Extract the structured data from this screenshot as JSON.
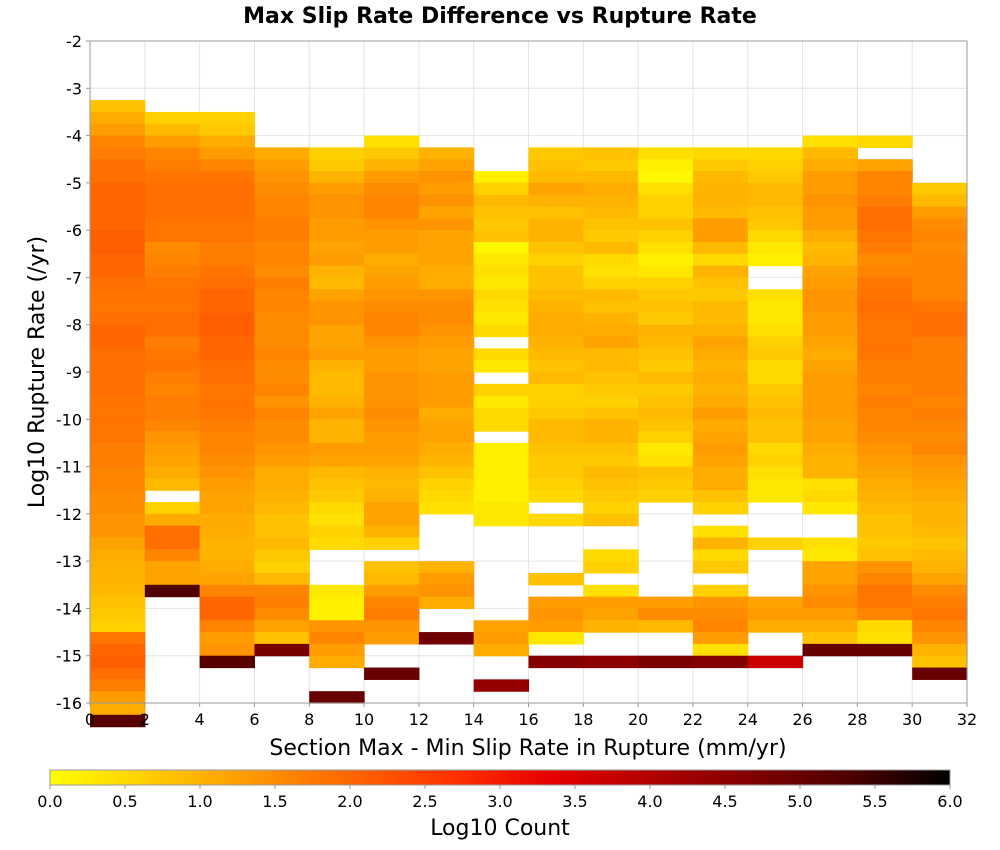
{
  "chart_data": {
    "type": "heatmap",
    "title": "Max Slip Rate Difference vs Rupture Rate",
    "xlabel": "Section Max - Min Slip Rate in Rupture (mm/yr)",
    "ylabel": "Log10 Rupture Rate (/yr)",
    "xlim": [
      0,
      32
    ],
    "ylim": [
      -16,
      -2
    ],
    "x_ticks": [
      "0",
      "2",
      "4",
      "6",
      "8",
      "10",
      "12",
      "14",
      "16",
      "18",
      "20",
      "22",
      "24",
      "26",
      "28",
      "30",
      "32"
    ],
    "y_ticks": [
      "-2",
      "-3",
      "-4",
      "-5",
      "-6",
      "-7",
      "-8",
      "-9",
      "-10",
      "-11",
      "-12",
      "-13",
      "-14",
      "-15",
      "-16"
    ],
    "x_bin_width": 2,
    "y_bin_height": 0.25,
    "colorbar": {
      "label": "Log10 Count",
      "range": [
        0,
        6
      ],
      "ticks": [
        "0.0",
        "0.5",
        "1.0",
        "1.5",
        "2.0",
        "2.5",
        "3.0",
        "3.5",
        "4.0",
        "4.5",
        "5.0",
        "5.5",
        "6.0"
      ],
      "stops": [
        "#ffff00",
        "#ffcc00",
        "#ff9900",
        "#ff6600",
        "#ff3300",
        "#e60000",
        "#b30000",
        "#800000",
        "#4d0000",
        "#000000"
      ]
    },
    "grid": true,
    "legend": "bottom",
    "cells": [
      {
        "x": 1,
        "y_top": -3.25,
        "values": [
          0.8,
          1.1,
          1.3,
          1.6,
          1.7,
          1.9,
          1.9,
          2.0,
          2.0,
          2.0,
          2.0,
          2.1,
          2.1,
          2.0,
          2.0,
          1.9,
          1.8,
          1.8,
          1.9,
          2.0,
          2.0,
          1.9,
          1.9,
          1.9,
          1.9,
          1.8,
          1.8,
          1.8,
          1.8,
          1.7,
          1.7,
          1.6,
          1.6,
          1.5,
          1.5,
          1.4,
          1.4,
          1.2,
          1.1,
          1.0,
          1.0,
          0.9,
          0.8,
          0.7,
          0.6,
          1.8,
          2.0,
          2.1,
          1.9,
          1.7,
          1.3,
          1.1,
          5.2
        ]
      },
      {
        "x": 3,
        "y_top": -3.5,
        "values": [
          0.6,
          0.9,
          1.3,
          1.6,
          1.7,
          1.8,
          1.9,
          1.9,
          1.9,
          1.8,
          1.8,
          1.5,
          1.6,
          1.7,
          1.8,
          1.8,
          1.8,
          1.9,
          1.9,
          1.7,
          1.8,
          1.8,
          1.7,
          1.6,
          1.7,
          1.7,
          1.6,
          1.4,
          1.3,
          1.2,
          1.1,
          0.9,
          null,
          0.6,
          1.1,
          1.9,
          1.9,
          1.6,
          1.2,
          1.2,
          5.3
        ]
      },
      {
        "x": 5,
        "y_top": -3.5,
        "values": [
          0.6,
          0.7,
          1.1,
          1.3,
          1.6,
          1.8,
          1.9,
          1.9,
          1.9,
          1.8,
          1.8,
          1.7,
          1.7,
          1.8,
          1.9,
          2.0,
          2.0,
          2.1,
          2.1,
          2.0,
          2.0,
          1.9,
          1.9,
          1.8,
          1.8,
          1.8,
          1.7,
          1.6,
          1.6,
          1.5,
          1.4,
          1.3,
          1.2,
          1.2,
          1.1,
          1.1,
          1.0,
          1.0,
          1.1,
          1.2,
          1.6,
          2.0,
          2.0,
          1.6,
          1.3,
          1.4,
          5.2
        ]
      },
      {
        "x": 7,
        "y_top": -4.25,
        "values": [
          1.1,
          1.3,
          1.4,
          1.5,
          1.6,
          1.6,
          1.7,
          1.7,
          1.6,
          1.6,
          1.5,
          1.7,
          1.6,
          1.6,
          1.5,
          1.5,
          1.5,
          1.6,
          1.5,
          1.5,
          1.6,
          1.4,
          1.6,
          1.5,
          1.5,
          1.4,
          1.3,
          1.1,
          1.1,
          1.0,
          0.9,
          0.8,
          0.8,
          0.9,
          0.7,
          0.6,
          0.9,
          1.6,
          1.7,
          1.5,
          1.2,
          0.8,
          4.8
        ]
      },
      {
        "x": 9,
        "y_top": -4.25,
        "values": [
          0.6,
          0.7,
          1.0,
          1.3,
          1.4,
          1.4,
          1.3,
          1.3,
          1.2,
          1.3,
          1.0,
          0.9,
          1.2,
          1.4,
          1.4,
          1.2,
          1.2,
          1.3,
          1.0,
          0.9,
          0.9,
          1.0,
          1.2,
          1.0,
          1.0,
          1.3,
          1.2,
          0.9,
          0.8,
          0.7,
          0.5,
          0.4,
          0.6,
          0.5,
          null,
          null,
          null,
          0.3,
          0.2,
          0.2,
          1.4,
          1.6,
          1.3,
          1.1,
          null,
          null,
          5.0
        ]
      },
      {
        "x": 11,
        "y_top": -4.0,
        "values": [
          0.4,
          0.7,
          1.0,
          1.3,
          1.5,
          1.6,
          1.6,
          1.4,
          1.3,
          1.3,
          1.1,
          1.2,
          1.3,
          1.4,
          1.5,
          1.6,
          1.6,
          1.4,
          1.3,
          1.3,
          1.4,
          1.4,
          1.4,
          1.5,
          1.4,
          1.3,
          1.3,
          1.2,
          1.0,
          0.9,
          1.0,
          1.2,
          1.2,
          1.0,
          0.6,
          null,
          0.8,
          0.9,
          1.3,
          1.6,
          1.7,
          1.4,
          1.3,
          null,
          null,
          5.0
        ]
      },
      {
        "x": 13,
        "y_top": -4.25,
        "values": [
          1.0,
          1.2,
          1.4,
          1.3,
          1.4,
          1.2,
          1.4,
          1.2,
          1.2,
          1.2,
          1.1,
          1.1,
          1.4,
          1.5,
          1.5,
          1.4,
          1.3,
          1.2,
          1.2,
          1.3,
          1.3,
          1.3,
          1.1,
          1.2,
          1.2,
          1.1,
          1.0,
          0.8,
          0.6,
          0.5,
          0.4,
          null,
          null,
          null,
          null,
          1.0,
          1.3,
          1.4,
          1.1,
          null,
          null,
          4.9
        ]
      },
      {
        "x": 15,
        "y_top": -4.75,
        "values": [
          0.2,
          0.6,
          0.9,
          0.8,
          0.7,
          0.8,
          0.1,
          0.3,
          0.4,
          0.3,
          0.5,
          0.4,
          0.3,
          0.5,
          null,
          0.5,
          0.3,
          null,
          0.6,
          0.3,
          0.5,
          0.5,
          null,
          0.2,
          0.2,
          0.2,
          0.2,
          0.2,
          0.3,
          0.3,
          null,
          null,
          null,
          null,
          null,
          null,
          null,
          null,
          1.2,
          1.3,
          1.1,
          null,
          null,
          4.4
        ]
      },
      {
        "x": 17,
        "y_top": -4.25,
        "values": [
          0.7,
          0.8,
          0.9,
          1.2,
          1.0,
          0.8,
          1.0,
          1.0,
          0.8,
          0.6,
          0.8,
          0.8,
          0.9,
          1.0,
          1.1,
          1.1,
          1.0,
          0.9,
          0.8,
          0.9,
          0.6,
          0.6,
          0.7,
          0.9,
          0.9,
          0.8,
          0.7,
          0.7,
          0.6,
          0.5,
          null,
          0.5,
          null,
          null,
          null,
          null,
          0.8,
          null,
          1.3,
          1.4,
          1.3,
          0.3,
          null,
          4.6
        ]
      },
      {
        "x": 19,
        "y_top": -4.25,
        "values": [
          0.8,
          0.7,
          0.9,
          1.1,
          1.0,
          0.9,
          0.8,
          0.7,
          0.9,
          0.5,
          0.4,
          0.6,
          0.9,
          0.8,
          1.0,
          1.1,
          1.2,
          0.9,
          0.9,
          0.8,
          0.7,
          0.6,
          0.8,
          1.0,
          1.0,
          0.8,
          0.7,
          0.9,
          0.8,
          0.7,
          0.6,
          0.8,
          null,
          null,
          0.5,
          0.6,
          null,
          0.4,
          1.3,
          1.2,
          1.0,
          null,
          null,
          4.5
        ]
      },
      {
        "x": 21,
        "y_top": -4.25,
        "values": [
          0.4,
          0.2,
          0.1,
          0.4,
          0.6,
          0.6,
          0.8,
          0.6,
          0.4,
          0.2,
          0.3,
          0.6,
          0.7,
          0.8,
          0.7,
          1.0,
          0.9,
          0.8,
          0.7,
          0.9,
          0.7,
          0.8,
          0.9,
          0.8,
          0.6,
          0.3,
          0.4,
          0.8,
          0.7,
          0.6,
          null,
          null,
          null,
          null,
          null,
          null,
          null,
          null,
          1.3,
          1.5,
          0.9,
          null,
          null,
          4.7
        ]
      },
      {
        "x": 23,
        "y_top": -4.25,
        "values": [
          0.5,
          0.7,
          0.9,
          1.0,
          1.0,
          0.9,
          1.3,
          1.3,
          0.9,
          0.5,
          1.0,
          0.8,
          0.7,
          0.9,
          0.9,
          1.0,
          1.2,
          1.1,
          1.0,
          1.1,
          1.0,
          1.1,
          1.3,
          1.1,
          1.2,
          1.3,
          1.2,
          1.1,
          1.1,
          0.8,
          0.6,
          null,
          0.4,
          1.0,
          0.5,
          0.7,
          null,
          0.6,
          1.4,
          1.5,
          1.6,
          1.3,
          0.4,
          4.6
        ]
      },
      {
        "x": 25,
        "y_top": -4.25,
        "values": [
          0.5,
          0.6,
          0.7,
          0.9,
          0.9,
          0.8,
          0.7,
          0.5,
          0.3,
          0.2,
          null,
          null,
          0.4,
          0.3,
          0.3,
          0.4,
          0.6,
          0.7,
          0.5,
          0.5,
          0.7,
          0.8,
          0.9,
          0.8,
          0.8,
          0.5,
          0.6,
          0.4,
          0.3,
          0.3,
          null,
          null,
          null,
          0.6,
          null,
          null,
          null,
          null,
          1.2,
          1.3,
          1.1,
          null,
          null,
          3.7
        ]
      },
      {
        "x": 27,
        "y_top": -4.0,
        "values": [
          0.4,
          0.9,
          1.1,
          1.3,
          1.3,
          1.4,
          1.3,
          1.3,
          1.1,
          0.9,
          1.0,
          1.2,
          1.3,
          1.4,
          1.4,
          1.3,
          1.3,
          1.2,
          1.1,
          1.2,
          1.3,
          1.3,
          1.3,
          1.3,
          1.2,
          1.2,
          1.1,
          1.0,
          1.0,
          0.4,
          0.5,
          0.3,
          null,
          null,
          0.4,
          0.3,
          1.2,
          1.2,
          1.4,
          1.5,
          1.3,
          1.1,
          0.8,
          5.0
        ]
      },
      {
        "x": 29,
        "y_top": -4.0,
        "values": [
          0.5,
          null,
          1.2,
          1.6,
          1.6,
          1.7,
          1.9,
          1.9,
          1.8,
          1.7,
          1.5,
          1.6,
          1.8,
          1.8,
          1.9,
          1.8,
          1.8,
          1.8,
          1.8,
          1.7,
          1.7,
          1.6,
          1.7,
          1.6,
          1.6,
          1.5,
          1.4,
          1.3,
          1.2,
          1.1,
          1.0,
          0.9,
          0.8,
          0.8,
          0.7,
          0.8,
          1.4,
          1.6,
          1.8,
          1.8,
          1.6,
          0.5,
          0.4,
          5.0
        ]
      },
      {
        "x": 31,
        "y_top": -5.0,
        "values": [
          0.7,
          0.9,
          1.3,
          1.5,
          1.6,
          1.5,
          1.6,
          1.6,
          1.6,
          1.6,
          1.8,
          1.9,
          1.9,
          1.7,
          1.7,
          1.7,
          1.7,
          1.7,
          1.6,
          1.7,
          1.6,
          1.5,
          1.6,
          1.4,
          1.3,
          1.2,
          1.1,
          1.0,
          1.0,
          0.9,
          0.8,
          0.9,
          1.0,
          1.2,
          1.5,
          1.7,
          1.8,
          1.6,
          1.4,
          1.0,
          0.8,
          5.0
        ]
      }
    ]
  }
}
